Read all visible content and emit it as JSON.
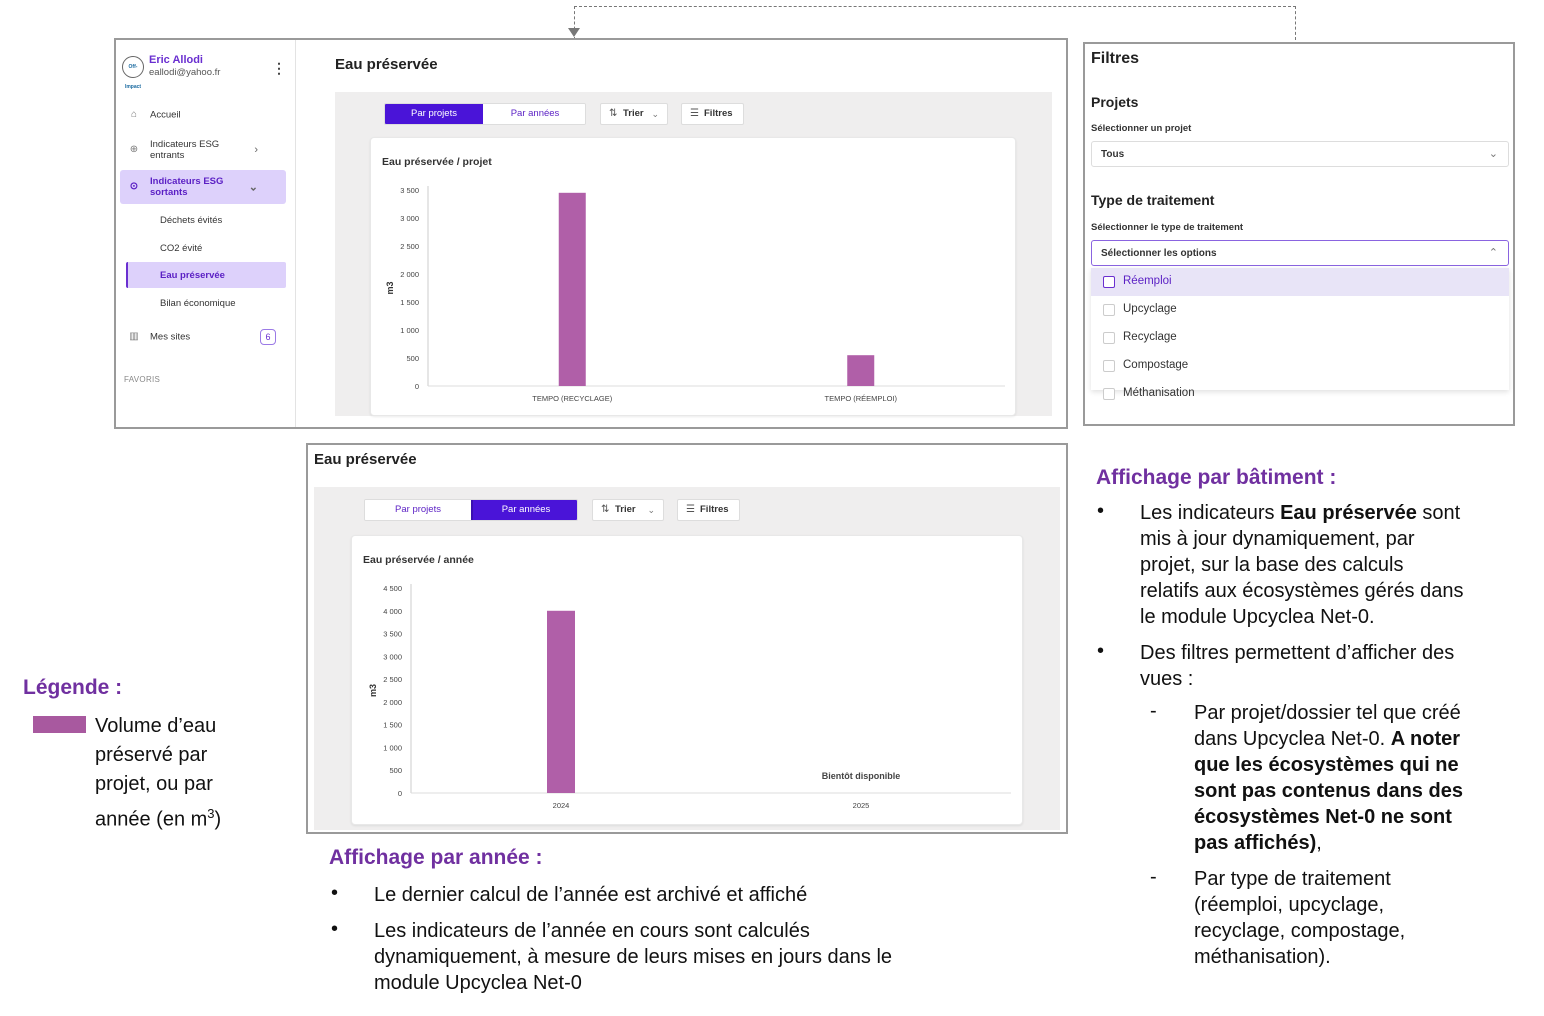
{
  "sidebar": {
    "user_name": "Eric Allodi",
    "user_email": "eallodi@yahoo.fr",
    "logo_text": "Off-Impact",
    "items": [
      {
        "label": "Accueil",
        "icon": "home-icon"
      },
      {
        "label": "Indicateurs ESG entrants",
        "icon": "arrow-down-circle-icon"
      },
      {
        "label": "Indicateurs ESG sortants",
        "icon": "arrow-up-circle-icon"
      },
      {
        "label": "Mes sites",
        "icon": "building-icon",
        "badge": "6"
      }
    ],
    "sub_items": [
      "Déchets évités",
      "CO2 évité",
      "Eau préservée",
      "Bilan économique"
    ],
    "section_label": "FAVORIS"
  },
  "view1": {
    "title": "Eau préservée",
    "tab_projects": "Par projets",
    "tab_years": "Par années",
    "sort_label": "Trier",
    "filter_label": "Filtres",
    "chart_title": "Eau préservée / projet"
  },
  "view2": {
    "title": "Eau préservée",
    "tab_projects": "Par projets",
    "tab_years": "Par années",
    "sort_label": "Trier",
    "filter_label": "Filtres",
    "chart_title": "Eau préservée / année",
    "pending_label": "Bientôt disponible"
  },
  "filters": {
    "title": "Filtres",
    "projects_heading": "Projets",
    "project_label": "Sélectionner un projet",
    "project_value": "Tous",
    "treatment_heading": "Type de traitement",
    "treatment_label": "Sélectionner le type de traitement",
    "treatment_placeholder": "Sélectionner les options",
    "options": [
      "Réemploi",
      "Upcyclage",
      "Recyclage",
      "Compostage",
      "Méthanisation"
    ]
  },
  "chart_data": [
    {
      "type": "bar",
      "title": "Eau préservée / projet",
      "ylabel": "m3",
      "categories": [
        "TEMPO (RECYCLAGE)",
        "TEMPO (RÉEMPLOI)"
      ],
      "values": [
        3450,
        550
      ],
      "ylim": [
        0,
        3500
      ],
      "yticks": [
        0,
        500,
        1000,
        1500,
        2000,
        2500,
        3000,
        3500
      ],
      "ytick_labels": [
        "0",
        "500",
        "1 000",
        "1 500",
        "2 000",
        "2 500",
        "3 000",
        "3 500"
      ],
      "color": "#b05fa8"
    },
    {
      "type": "bar",
      "title": "Eau préservée / année",
      "ylabel": "m3",
      "categories": [
        "2024",
        "2025"
      ],
      "values": [
        4000,
        null
      ],
      "ylim": [
        0,
        4500
      ],
      "yticks": [
        0,
        500,
        1000,
        1500,
        2000,
        2500,
        3000,
        3500,
        4000,
        4500
      ],
      "ytick_labels": [
        "0",
        "500",
        "1 000",
        "1 500",
        "2 000",
        "2 500",
        "3 000",
        "3 500",
        "4 000",
        "4 500"
      ],
      "color": "#b05fa8"
    }
  ],
  "legend": {
    "heading": "Légende :",
    "line1": "Volume d’eau",
    "line2": "préservé par",
    "line3": "projet, ou par",
    "line4": "année (en m",
    "sup": "3",
    "line4_end": ")",
    "color": "#a8599f"
  },
  "annual": {
    "heading": "Affichage par année :",
    "bullet1": "Le dernier calcul de l’année est archivé et affiché",
    "bullet2_l1": "Les indicateurs de l’année en cours sont calculés",
    "bullet2_l2": "dynamiquement, à mesure de leurs mises en jours dans le",
    "bullet2_l3": "module Upcyclea Net-0"
  },
  "building": {
    "heading": "Affichage par bâtiment :",
    "b1_l1_pre": "Les indicateurs ",
    "b1_l1_bold": "Eau préservée",
    "b1_l1_post": " sont",
    "b1_l2": "mis à jour dynamiquement, par",
    "b1_l3": "projet, sur la base des calculs",
    "b1_l4": "relatifs aux écosystèmes gérés dans",
    "b1_l5": "le module Upcyclea Net-0.",
    "b2_l1": "Des filtres permettent d’afficher des",
    "b2_l2": "vues :",
    "d1_l1": "Par projet/dossier tel que créé",
    "d1_l2_pre": "dans Upcyclea Net-0. ",
    "d1_l2_bold": "A noter",
    "d1_l3": "que les écosystèmes qui ne",
    "d1_l4": "sont pas contenus dans des",
    "d1_l5": "écosystèmes Net-0 ne sont",
    "d1_l6_bold": "pas affichés)",
    "d1_l6_post": ",",
    "d2_l1": "Par type de traitement",
    "d2_l2": "(réemploi, upcyclage,",
    "d2_l3": "recyclage, compostage,",
    "d2_l4": "méthanisation).",
    "bullet_char": "•",
    "dash_char": "-"
  }
}
